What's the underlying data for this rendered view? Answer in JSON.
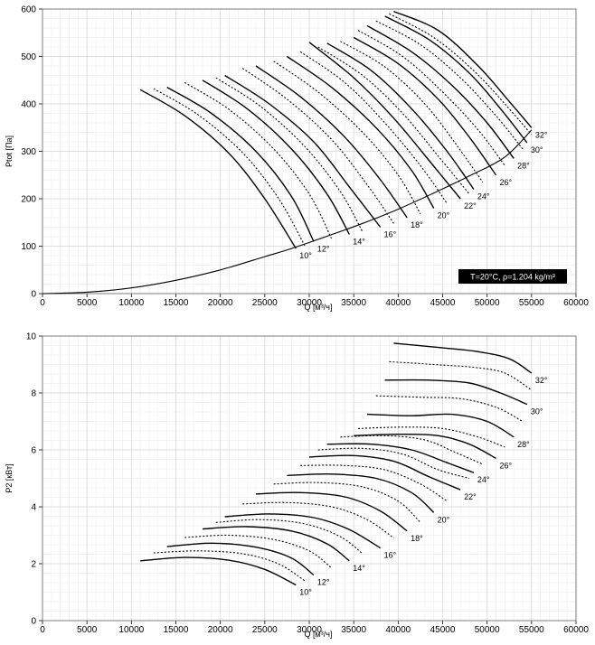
{
  "chart_data": [
    {
      "type": "line",
      "xlabel": "Q [м³/ч]",
      "ylabel": "Ptot [Па]",
      "xlim": [
        0,
        60000
      ],
      "ylim": [
        0,
        600
      ],
      "xticks": [
        "0",
        "5000",
        "10000",
        "15000",
        "20000",
        "25000",
        "30000",
        "35000",
        "40000",
        "45000",
        "50000",
        "55000",
        "60000"
      ],
      "yticks": [
        "0",
        "100",
        "200",
        "300",
        "400",
        "500",
        "600"
      ],
      "annotation": "T=20°C, ρ=1.204 kg/m³",
      "boundary_curve": {
        "x": [
          0,
          5000,
          10000,
          15000,
          20000,
          25000,
          28000,
          32000,
          36000,
          40000,
          44000,
          48000,
          52000,
          55000
        ],
        "y": [
          0,
          3,
          12,
          28,
          50,
          78,
          95,
          121,
          148,
          178,
          212,
          248,
          288,
          345
        ]
      },
      "series": [
        {
          "name": "10°",
          "style": "solid",
          "x": [
            11000,
            16000,
            21000,
            25000,
            28500
          ],
          "y": [
            430,
            375,
            295,
            200,
            95
          ]
        },
        {
          "name": "",
          "style": "dotted",
          "x": [
            12500,
            17500,
            22500,
            26500,
            29500
          ],
          "y": [
            432,
            377,
            297,
            202,
            101
          ]
        },
        {
          "name": "12°",
          "style": "solid",
          "x": [
            14000,
            19000,
            24000,
            28000,
            30500
          ],
          "y": [
            435,
            380,
            300,
            205,
            110
          ]
        },
        {
          "name": "",
          "style": "dotted",
          "x": [
            16000,
            21000,
            26000,
            30000,
            32500
          ],
          "y": [
            445,
            388,
            305,
            210,
            116
          ]
        },
        {
          "name": "14°",
          "style": "solid",
          "x": [
            18000,
            23000,
            28000,
            32000,
            34500
          ],
          "y": [
            450,
            390,
            305,
            210,
            125
          ]
        },
        {
          "name": "",
          "style": "dotted",
          "x": [
            19500,
            24500,
            29500,
            33500,
            36000
          ],
          "y": [
            455,
            395,
            310,
            215,
            130
          ]
        },
        {
          "name": "16°",
          "style": "solid",
          "x": [
            20500,
            25500,
            30500,
            34500,
            38000
          ],
          "y": [
            460,
            400,
            320,
            225,
            140
          ]
        },
        {
          "name": "",
          "style": "dotted",
          "x": [
            22500,
            27500,
            32500,
            36500,
            39500
          ],
          "y": [
            475,
            410,
            325,
            230,
            148
          ]
        },
        {
          "name": "18°",
          "style": "solid",
          "x": [
            24000,
            29000,
            34000,
            38000,
            41000
          ],
          "y": [
            480,
            415,
            330,
            240,
            160
          ]
        },
        {
          "name": "",
          "style": "dotted",
          "x": [
            26000,
            31000,
            36000,
            40000,
            42500
          ],
          "y": [
            490,
            425,
            340,
            250,
            168
          ]
        },
        {
          "name": "20°",
          "style": "solid",
          "x": [
            27500,
            32500,
            37500,
            41500,
            44000
          ],
          "y": [
            500,
            435,
            350,
            260,
            180
          ]
        },
        {
          "name": "",
          "style": "dotted",
          "x": [
            29000,
            34000,
            38500,
            42500,
            45500
          ],
          "y": [
            510,
            445,
            360,
            270,
            190
          ]
        },
        {
          "name": "22°",
          "style": "solid",
          "x": [
            30000,
            35000,
            39500,
            43500,
            47000
          ],
          "y": [
            530,
            455,
            370,
            280,
            200
          ]
        },
        {
          "name": "",
          "style": "dotted",
          "x": [
            31000,
            36000,
            40500,
            44500,
            48000
          ],
          "y": [
            520,
            460,
            380,
            290,
            210
          ]
        },
        {
          "name": "24°",
          "style": "solid",
          "x": [
            32000,
            37000,
            41500,
            45500,
            48500
          ],
          "y": [
            528,
            470,
            390,
            300,
            220
          ]
        },
        {
          "name": "",
          "style": "dotted",
          "x": [
            33500,
            38500,
            43000,
            46500,
            49500
          ],
          "y": [
            532,
            478,
            400,
            315,
            235
          ]
        },
        {
          "name": "26°",
          "style": "solid",
          "x": [
            35000,
            40000,
            44500,
            48000,
            51000
          ],
          "y": [
            540,
            485,
            410,
            330,
            250
          ]
        },
        {
          "name": "",
          "style": "dotted",
          "x": [
            35500,
            40500,
            45000,
            49000,
            52000
          ],
          "y": [
            555,
            500,
            425,
            345,
            270
          ]
        },
        {
          "name": "28°",
          "style": "solid",
          "x": [
            36500,
            41500,
            46000,
            50000,
            53000
          ],
          "y": [
            565,
            510,
            440,
            360,
            285
          ]
        },
        {
          "name": "",
          "style": "dotted",
          "x": [
            37500,
            42500,
            47000,
            51000,
            54000
          ],
          "y": [
            575,
            525,
            455,
            375,
            305
          ]
        },
        {
          "name": "30°",
          "style": "solid",
          "x": [
            38500,
            43500,
            48000,
            51500,
            54500
          ],
          "y": [
            585,
            535,
            465,
            390,
            318
          ]
        },
        {
          "name": "",
          "style": "dotted",
          "x": [
            39000,
            44000,
            48500,
            52000,
            55000
          ],
          "y": [
            590,
            540,
            470,
            400,
            335
          ]
        },
        {
          "name": "32°",
          "style": "solid",
          "x": [
            39500,
            44500,
            49000,
            52500,
            55000
          ],
          "y": [
            595,
            555,
            480,
            405,
            350
          ]
        }
      ]
    },
    {
      "type": "line",
      "xlabel": "Q [м³/ч]",
      "ylabel": "P2 [кВт]",
      "xlim": [
        0,
        60000
      ],
      "ylim": [
        0,
        10
      ],
      "xticks": [
        "0",
        "5000",
        "10000",
        "15000",
        "20000",
        "25000",
        "30000",
        "35000",
        "40000",
        "45000",
        "50000",
        "55000",
        "60000"
      ],
      "yticks": [
        "0",
        "2",
        "4",
        "6",
        "8",
        "10"
      ],
      "series": [
        {
          "name": "10°",
          "style": "solid",
          "x": [
            11000,
            16000,
            21000,
            25000,
            28500
          ],
          "y": [
            2.1,
            2.22,
            2.12,
            1.8,
            1.25
          ]
        },
        {
          "name": "",
          "style": "dotted",
          "x": [
            12500,
            17500,
            22500,
            26500,
            29500
          ],
          "y": [
            2.38,
            2.45,
            2.35,
            2.0,
            1.4
          ]
        },
        {
          "name": "12°",
          "style": "solid",
          "x": [
            14000,
            19000,
            24000,
            28000,
            30500
          ],
          "y": [
            2.6,
            2.72,
            2.58,
            2.2,
            1.6
          ]
        },
        {
          "name": "",
          "style": "dotted",
          "x": [
            16000,
            21000,
            26000,
            30000,
            32500
          ],
          "y": [
            2.92,
            3.0,
            2.85,
            2.45,
            1.85
          ]
        },
        {
          "name": "14°",
          "style": "solid",
          "x": [
            18000,
            23000,
            28000,
            32000,
            34500
          ],
          "y": [
            3.22,
            3.3,
            3.15,
            2.7,
            2.1
          ]
        },
        {
          "name": "",
          "style": "dotted",
          "x": [
            19500,
            24500,
            29500,
            33500,
            36000
          ],
          "y": [
            3.45,
            3.55,
            3.4,
            2.95,
            2.35
          ]
        },
        {
          "name": "16°",
          "style": "solid",
          "x": [
            20500,
            25500,
            30500,
            34500,
            38000
          ],
          "y": [
            3.65,
            3.75,
            3.62,
            3.2,
            2.55
          ]
        },
        {
          "name": "",
          "style": "dotted",
          "x": [
            22500,
            27500,
            32500,
            36500,
            39500
          ],
          "y": [
            4.1,
            4.15,
            4.0,
            3.55,
            2.9
          ]
        },
        {
          "name": "18°",
          "style": "solid",
          "x": [
            24000,
            29000,
            34000,
            38000,
            41000
          ],
          "y": [
            4.45,
            4.5,
            4.35,
            3.85,
            3.15
          ]
        },
        {
          "name": "",
          "style": "dotted",
          "x": [
            26000,
            31000,
            36000,
            40000,
            42500
          ],
          "y": [
            4.8,
            4.85,
            4.7,
            4.2,
            3.45
          ]
        },
        {
          "name": "20°",
          "style": "solid",
          "x": [
            27500,
            32500,
            37500,
            41500,
            44000
          ],
          "y": [
            5.1,
            5.15,
            5.0,
            4.5,
            3.8
          ]
        },
        {
          "name": "",
          "style": "dotted",
          "x": [
            29000,
            34000,
            38500,
            42500,
            45500
          ],
          "y": [
            5.45,
            5.45,
            5.3,
            4.8,
            4.2
          ]
        },
        {
          "name": "22°",
          "style": "solid",
          "x": [
            30000,
            35000,
            39500,
            43500,
            47000
          ],
          "y": [
            5.75,
            5.8,
            5.6,
            5.05,
            4.6
          ]
        },
        {
          "name": "",
          "style": "dotted",
          "x": [
            31000,
            36000,
            40500,
            44500,
            48000
          ],
          "y": [
            6.0,
            6.05,
            5.85,
            5.3,
            5.0
          ]
        },
        {
          "name": "24°",
          "style": "solid",
          "x": [
            32000,
            37000,
            41500,
            45500,
            48500
          ],
          "y": [
            6.2,
            6.2,
            6.0,
            5.55,
            5.2
          ]
        },
        {
          "name": "",
          "style": "dotted",
          "x": [
            33500,
            38500,
            43000,
            46500,
            49500
          ],
          "y": [
            6.45,
            6.5,
            6.35,
            5.9,
            5.5
          ]
        },
        {
          "name": "26°",
          "style": "solid",
          "x": [
            35000,
            40000,
            44500,
            48000,
            51000
          ],
          "y": [
            6.5,
            6.55,
            6.5,
            6.2,
            5.7
          ]
        },
        {
          "name": "",
          "style": "dotted",
          "x": [
            35500,
            40500,
            45000,
            49000,
            52000
          ],
          "y": [
            6.75,
            6.8,
            6.75,
            6.45,
            6.1
          ]
        },
        {
          "name": "28°",
          "style": "solid",
          "x": [
            36500,
            41500,
            46000,
            50000,
            53000
          ],
          "y": [
            7.25,
            7.2,
            7.25,
            7.0,
            6.45
          ]
        },
        {
          "name": "",
          "style": "dotted",
          "x": [
            37500,
            42500,
            47000,
            51000,
            54000
          ],
          "y": [
            7.9,
            7.85,
            7.8,
            7.5,
            7.0
          ]
        },
        {
          "name": "30°",
          "style": "solid",
          "x": [
            38500,
            43500,
            48000,
            51500,
            54500
          ],
          "y": [
            8.45,
            8.45,
            8.35,
            8.0,
            7.6
          ]
        },
        {
          "name": "",
          "style": "dotted",
          "x": [
            39000,
            44000,
            48500,
            52000,
            55000
          ],
          "y": [
            9.1,
            9.0,
            8.9,
            8.7,
            8.1
          ]
        },
        {
          "name": "32°",
          "style": "solid",
          "x": [
            39500,
            44500,
            49000,
            52500,
            55000
          ],
          "y": [
            9.75,
            9.6,
            9.45,
            9.2,
            8.7
          ]
        }
      ]
    }
  ]
}
